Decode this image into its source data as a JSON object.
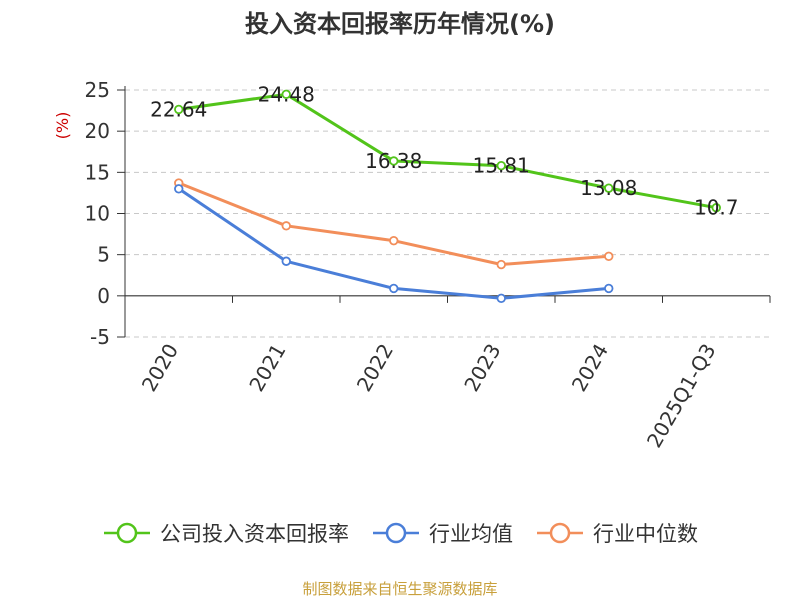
{
  "title": "投入资本回报率历年情况(%)",
  "source": "制图数据来自恒生聚源数据库",
  "chart_data": {
    "type": "line",
    "title": "投入资本回报率历年情况(%)",
    "ylabel": "(%)",
    "xlabel": "",
    "categories": [
      "2020",
      "2021",
      "2022",
      "2023",
      "2024",
      "2025Q1-Q3"
    ],
    "ylim": [
      -5,
      25
    ],
    "yticks": [
      -5,
      0,
      5,
      10,
      15,
      20,
      25
    ],
    "grid": true,
    "legend_position": "bottom",
    "series": [
      {
        "name": "公司投入资本回报率",
        "color": "#52c41a",
        "values": [
          22.64,
          24.48,
          16.38,
          15.81,
          13.08,
          10.7
        ],
        "labels": [
          "22.64",
          "24.48",
          "16.38",
          "15.81",
          "13.08",
          "10.7"
        ]
      },
      {
        "name": "行业均值",
        "color": "#4a7ed8",
        "values": [
          13.0,
          4.2,
          0.9,
          -0.3,
          0.9,
          null
        ]
      },
      {
        "name": "行业中位数",
        "color": "#f28e5a",
        "values": [
          13.7,
          8.5,
          6.7,
          3.8,
          4.8,
          null
        ]
      }
    ]
  }
}
